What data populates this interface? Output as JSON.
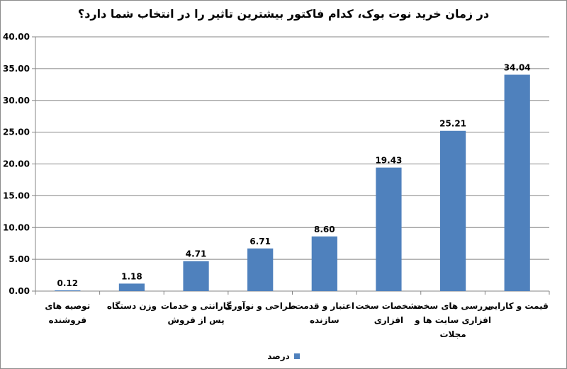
{
  "chart_data": {
    "type": "bar",
    "title": "در زمان خرید نوت بوک، کدام فاکتور بیشترین تاثیر را در انتخاب شما دارد؟",
    "categories": [
      [
        "توصیه های",
        "فروشنده"
      ],
      [
        "وزن دستگاه"
      ],
      [
        "گارانتی و خدمات",
        "پس از فروش"
      ],
      [
        "طراحی و نوآوری"
      ],
      [
        "اعتبار و قدمت",
        "سازنده"
      ],
      [
        "مشخصات سخت",
        "افزاری"
      ],
      [
        "بررسی های سخت",
        "افزاری سایت ها و",
        "مجلات"
      ],
      [
        "قیمت و کارایی"
      ]
    ],
    "series": [
      {
        "name": "درصد",
        "values": [
          0.12,
          1.18,
          4.71,
          6.71,
          8.6,
          19.43,
          25.21,
          34.04
        ]
      }
    ],
    "value_labels": [
      "0.12",
      "1.18",
      "4.71",
      "6.71",
      "8.60",
      "19.43",
      "25.21",
      "34.04"
    ],
    "ylim": [
      0,
      40
    ],
    "yticks": [
      0,
      5,
      10,
      15,
      20,
      25,
      30,
      35,
      40
    ],
    "ytick_labels": [
      "0.00",
      "5.00",
      "10.00",
      "15.00",
      "20.00",
      "25.00",
      "30.00",
      "35.00",
      "40.00"
    ],
    "grid": true,
    "legend": "bottom",
    "bar_color": "#4f81bd",
    "grid_color": "#858585"
  }
}
